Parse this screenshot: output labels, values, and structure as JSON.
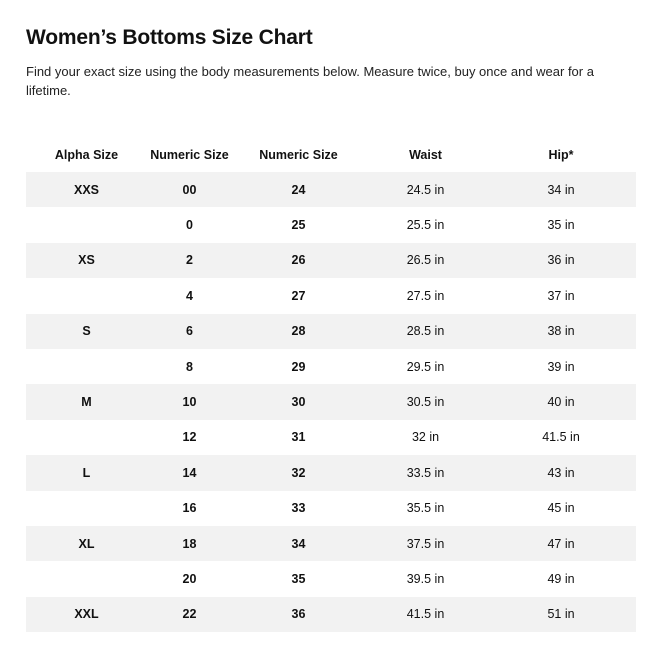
{
  "page": {
    "title": "Women’s Bottoms Size Chart",
    "intro": "Find your exact size using the body measurements below. Measure twice, buy once and wear for a lifetime."
  },
  "table": {
    "headers": [
      "Alpha Size",
      "Numeric Size",
      "Numeric Size",
      "Waist",
      "Hip*"
    ],
    "rows": [
      [
        "XXS",
        "00",
        "24",
        "24.5 in",
        "34 in"
      ],
      [
        "",
        "0",
        "25",
        "25.5 in",
        "35 in"
      ],
      [
        "XS",
        "2",
        "26",
        "26.5 in",
        "36 in"
      ],
      [
        "",
        "4",
        "27",
        "27.5 in",
        "37 in"
      ],
      [
        "S",
        "6",
        "28",
        "28.5 in",
        "38 in"
      ],
      [
        "",
        "8",
        "29",
        "29.5 in",
        "39 in"
      ],
      [
        "M",
        "10",
        "30",
        "30.5 in",
        "40 in"
      ],
      [
        "",
        "12",
        "31",
        "32 in",
        "41.5 in"
      ],
      [
        "L",
        "14",
        "32",
        "33.5 in",
        "43 in"
      ],
      [
        "",
        "16",
        "33",
        "35.5 in",
        "45 in"
      ],
      [
        "XL",
        "18",
        "34",
        "37.5 in",
        "47 in"
      ],
      [
        "",
        "20",
        "35",
        "39.5 in",
        "49 in"
      ],
      [
        "XXL",
        "22",
        "36",
        "41.5 in",
        "51 in"
      ]
    ]
  }
}
